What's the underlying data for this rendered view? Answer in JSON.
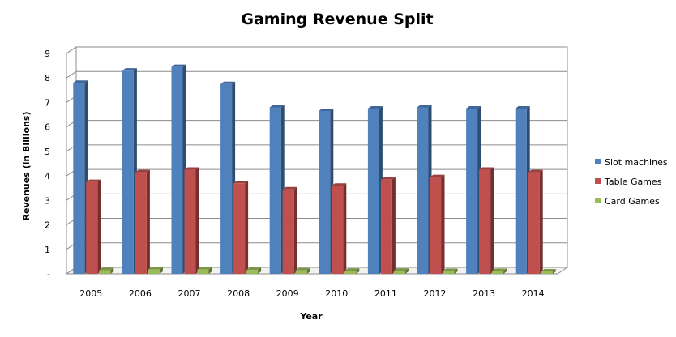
{
  "chart_data": {
    "type": "bar",
    "title": "Gaming Revenue Split",
    "xlabel": "Year",
    "ylabel": "Revenues (in Billions)",
    "categories": [
      "2005",
      "2006",
      "2007",
      "2008",
      "2009",
      "2010",
      "2011",
      "2012",
      "2013",
      "2014"
    ],
    "ylim": [
      0,
      9
    ],
    "yticks": [
      "-",
      "1",
      "2",
      "3",
      "4",
      "5",
      "6",
      "7",
      "8",
      "9"
    ],
    "grid": true,
    "legend_position": "right",
    "series": [
      {
        "name": "Slot machines",
        "color": "#4F81BD",
        "values": [
          7.8,
          8.3,
          8.45,
          7.75,
          6.8,
          6.65,
          6.75,
          6.8,
          6.75,
          6.75
        ]
      },
      {
        "name": "Table Games",
        "color": "#C0504D",
        "values": [
          3.75,
          4.15,
          4.25,
          3.7,
          3.45,
          3.6,
          3.85,
          3.95,
          4.25,
          4.15
        ]
      },
      {
        "name": "Card Games",
        "color": "#9BBB59",
        "values": [
          0.15,
          0.18,
          0.18,
          0.16,
          0.14,
          0.13,
          0.13,
          0.12,
          0.12,
          0.1
        ]
      }
    ]
  }
}
